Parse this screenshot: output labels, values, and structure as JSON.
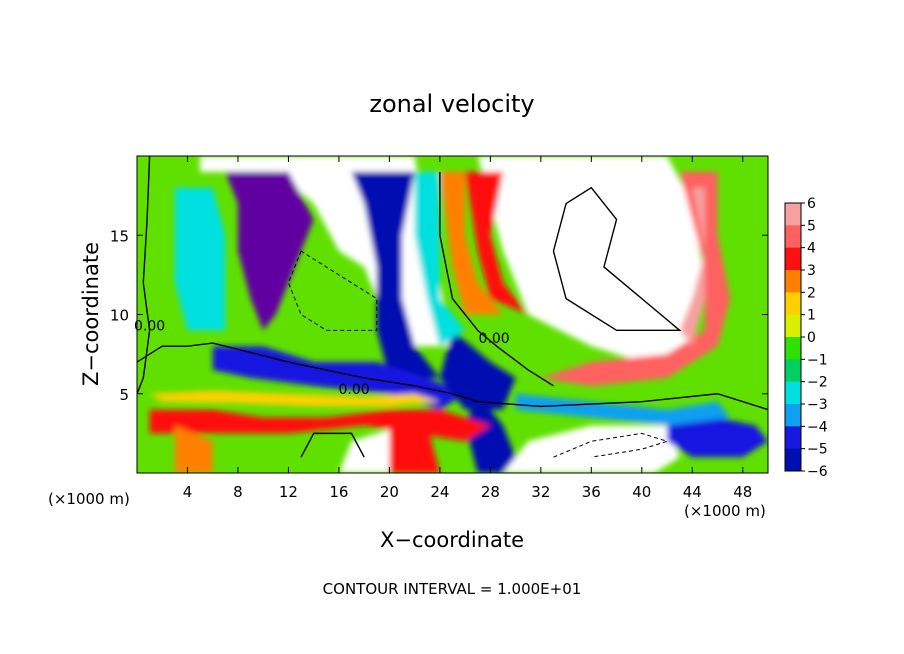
{
  "chart_data": {
    "type": "heatmap",
    "title": "zonal velocity",
    "xlabel": "X−coordinate",
    "ylabel": "Z−coordinate",
    "x_unit_left": "(×1000 m)",
    "x_unit_right": "(×1000 m)",
    "footer": "CONTOUR INTERVAL = 1.000E+01",
    "xlim": [
      0,
      50
    ],
    "ylim": [
      0,
      20
    ],
    "x_ticks": [
      4,
      8,
      12,
      16,
      20,
      24,
      28,
      32,
      36,
      40,
      44,
      48
    ],
    "y_ticks": [
      5,
      10,
      15
    ],
    "contour_labels": [
      {
        "text": "0.00",
        "x": 1.0,
        "y": 9.0
      },
      {
        "text": "0.00",
        "x": 17.2,
        "y": 5.0
      },
      {
        "text": "0.00",
        "x": 28.3,
        "y": 8.2
      }
    ],
    "colorbar": {
      "ticks": [
        "6",
        "5",
        "4",
        "3",
        "2",
        "1",
        "0",
        "−1",
        "−2",
        "−3",
        "−4",
        "−5",
        "−6"
      ],
      "range": [
        -6,
        6
      ],
      "colors": [
        "#f7a0a0",
        "#ff6060",
        "#ff1010",
        "#ff8000",
        "#ffd000",
        "#d8f000",
        "#30e000",
        "#00d060",
        "#00e0e0",
        "#10a0f0",
        "#1818e0",
        "#0010b0",
        "#6000a0"
      ]
    }
  }
}
